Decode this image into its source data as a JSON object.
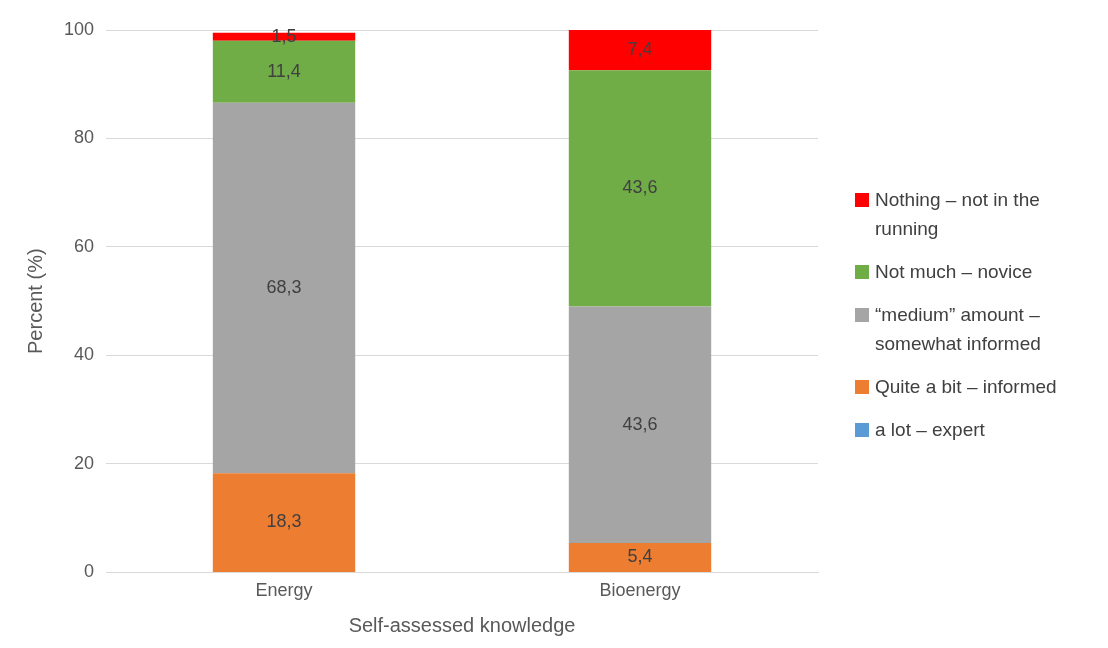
{
  "chart_data": {
    "type": "bar",
    "stacked": true,
    "xlabel": "Self-assessed knowledge",
    "ylabel": "Percent (%)",
    "categories": [
      "Energy",
      "Bioenergy"
    ],
    "series": [
      {
        "name": "a lot – expert",
        "color": "#5b9bd5",
        "values": [
          0,
          0
        ],
        "value_labels": [
          null,
          null
        ]
      },
      {
        "name": "Quite a bit – informed",
        "color": "#ed7d31",
        "values": [
          18.3,
          5.4
        ],
        "value_labels": [
          "18,3",
          "5,4"
        ]
      },
      {
        "name": "“medium” amount – somewhat informed",
        "color": "#a5a5a5",
        "values": [
          68.3,
          43.6
        ],
        "value_labels": [
          "68,3",
          "43,6"
        ]
      },
      {
        "name": "Not much – novice",
        "color": "#70ad47",
        "values": [
          11.4,
          43.6
        ],
        "value_labels": [
          "11,4",
          "43,6"
        ]
      },
      {
        "name": "Nothing – not in the running",
        "color": "#ff0000",
        "values": [
          1.5,
          7.4
        ],
        "value_labels": [
          "1,5",
          "7,4"
        ]
      }
    ],
    "ylim": [
      0,
      100
    ],
    "yticks": [
      0,
      20,
      40,
      60,
      80,
      100
    ],
    "grid": "y",
    "legend": "right"
  }
}
